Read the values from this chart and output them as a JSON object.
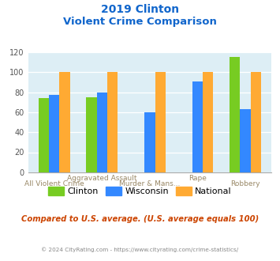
{
  "title_line1": "2019 Clinton",
  "title_line2": "Violent Crime Comparison",
  "categories": [
    "All Violent Crime",
    "Aggravated Assault",
    "Murder & Mans...",
    "Rape",
    "Robbery"
  ],
  "series": {
    "Clinton": [
      74,
      75,
      null,
      null,
      115
    ],
    "Wisconsin": [
      77,
      80,
      60,
      91,
      63
    ],
    "National": [
      100,
      100,
      100,
      100,
      100
    ]
  },
  "colors": {
    "Clinton": "#77cc22",
    "Wisconsin": "#3388ff",
    "National": "#ffaa33"
  },
  "ylim": [
    0,
    120
  ],
  "yticks": [
    0,
    20,
    40,
    60,
    80,
    100,
    120
  ],
  "plot_bg": "#ddeef5",
  "title_color": "#1166cc",
  "subtitle_text": "Compared to U.S. average. (U.S. average equals 100)",
  "footer_text": "© 2024 CityRating.com - https://www.cityrating.com/crime-statistics/",
  "subtitle_color": "#cc4400",
  "footer_color": "#888888",
  "xtick_color": "#998866",
  "bar_width": 0.22
}
